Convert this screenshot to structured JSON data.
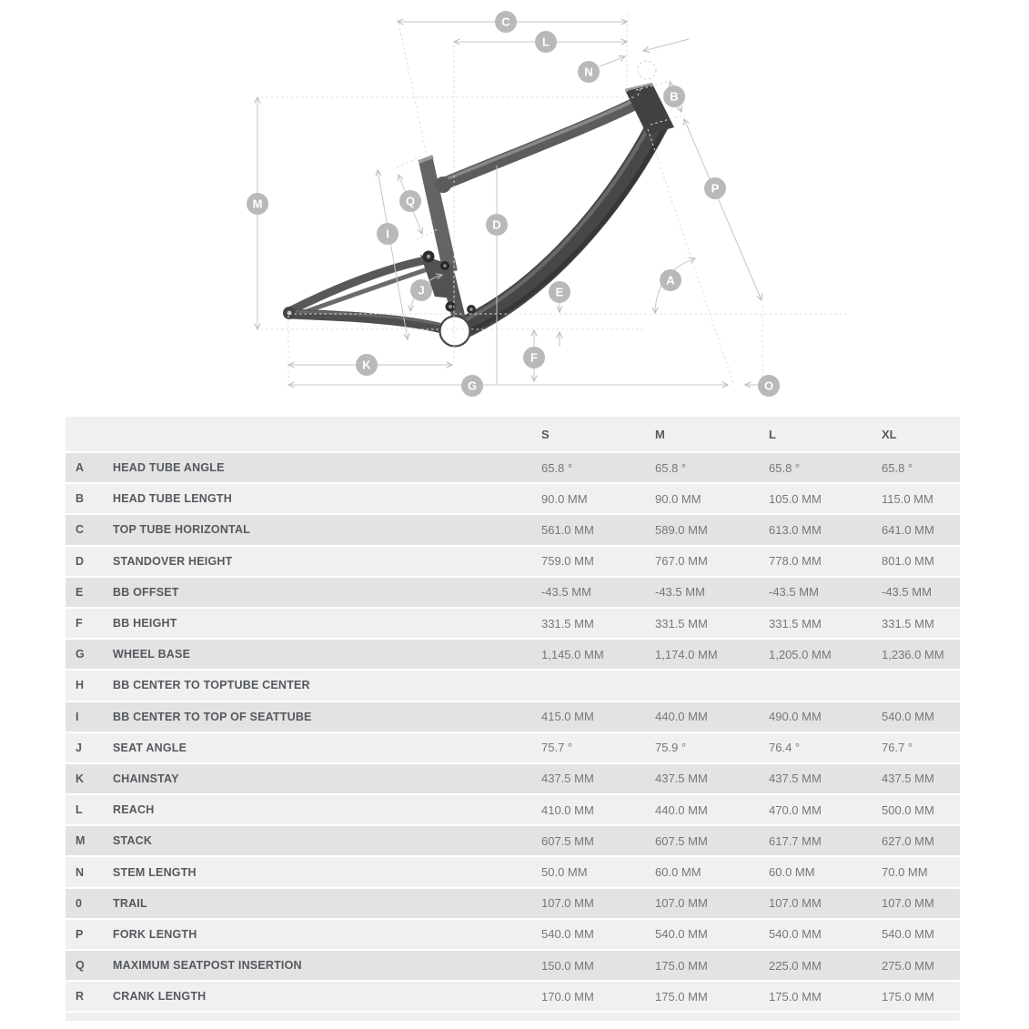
{
  "diagram": {
    "badges": {
      "a": "A",
      "b": "B",
      "c": "C",
      "d": "D",
      "e": "E",
      "f": "F",
      "g": "G",
      "i": "I",
      "j": "J",
      "k": "K",
      "l": "L",
      "m": "M",
      "n": "N",
      "o": "O",
      "p": "P",
      "q": "Q"
    }
  },
  "table": {
    "columns": [
      "S",
      "M",
      "L",
      "XL"
    ],
    "rows": [
      {
        "key": "A",
        "label": "HEAD TUBE ANGLE",
        "values": [
          "65.8 °",
          "65.8 °",
          "65.8 °",
          "65.8 °"
        ]
      },
      {
        "key": "B",
        "label": "HEAD TUBE LENGTH",
        "values": [
          "90.0 MM",
          "90.0 MM",
          "105.0 MM",
          "115.0 MM"
        ]
      },
      {
        "key": "C",
        "label": "TOP TUBE HORIZONTAL",
        "values": [
          "561.0 MM",
          "589.0 MM",
          "613.0 MM",
          "641.0 MM"
        ]
      },
      {
        "key": "D",
        "label": "STANDOVER HEIGHT",
        "values": [
          "759.0 MM",
          "767.0 MM",
          "778.0 MM",
          "801.0 MM"
        ]
      },
      {
        "key": "E",
        "label": "BB OFFSET",
        "values": [
          "-43.5 MM",
          "-43.5 MM",
          "-43.5 MM",
          "-43.5 MM"
        ]
      },
      {
        "key": "F",
        "label": "BB HEIGHT",
        "values": [
          "331.5 MM",
          "331.5 MM",
          "331.5 MM",
          "331.5 MM"
        ]
      },
      {
        "key": "G",
        "label": "WHEEL BASE",
        "values": [
          "1,145.0 MM",
          "1,174.0 MM",
          "1,205.0 MM",
          "1,236.0 MM"
        ]
      },
      {
        "key": "H",
        "label": "BB CENTER TO TOPTUBE CENTER",
        "values": [
          "",
          "",
          "",
          ""
        ]
      },
      {
        "key": "I",
        "label": "BB CENTER TO TOP OF SEATTUBE",
        "values": [
          "415.0 MM",
          "440.0 MM",
          "490.0 MM",
          "540.0 MM"
        ]
      },
      {
        "key": "J",
        "label": "SEAT ANGLE",
        "values": [
          "75.7 °",
          "75.9 °",
          "76.4 °",
          "76.7 °"
        ]
      },
      {
        "key": "K",
        "label": "CHAINSTAY",
        "values": [
          "437.5 MM",
          "437.5 MM",
          "437.5 MM",
          "437.5 MM"
        ]
      },
      {
        "key": "L",
        "label": "REACH",
        "values": [
          "410.0 MM",
          "440.0 MM",
          "470.0 MM",
          "500.0 MM"
        ]
      },
      {
        "key": "M",
        "label": "STACK",
        "values": [
          "607.5 MM",
          "607.5 MM",
          "617.7 MM",
          "627.0 MM"
        ]
      },
      {
        "key": "N",
        "label": "STEM LENGTH",
        "values": [
          "50.0 MM",
          "60.0 MM",
          "60.0 MM",
          "70.0 MM"
        ]
      },
      {
        "key": "0",
        "label": "TRAIL",
        "values": [
          "107.0 MM",
          "107.0 MM",
          "107.0 MM",
          "107.0 MM"
        ]
      },
      {
        "key": "P",
        "label": "FORK LENGTH",
        "values": [
          "540.0 MM",
          "540.0 MM",
          "540.0 MM",
          "540.0 MM"
        ]
      },
      {
        "key": "Q",
        "label": "MAXIMUM SEATPOST INSERTION",
        "values": [
          "150.0 MM",
          "175.0 MM",
          "225.0 MM",
          "275.0 MM"
        ]
      },
      {
        "key": "R",
        "label": "CRANK LENGTH",
        "values": [
          "170.0 MM",
          "175.0 MM",
          "175.0 MM",
          "175.0 MM"
        ]
      }
    ]
  },
  "colors": {
    "table_background": "#f0f0f0",
    "row_dark": "#e3e3e3",
    "row_light": "#f0f0f0",
    "header_text": "#55595e",
    "label_text": "#55595e",
    "value_text": "#74787c",
    "badge_fill": "#b9b9b9",
    "badge_text": "#ffffff",
    "dimension_line": "#c6c6c6",
    "dashed_line": "#dcdcdc",
    "frame_dark": "#474747",
    "frame_mid": "#5c5c5c"
  }
}
